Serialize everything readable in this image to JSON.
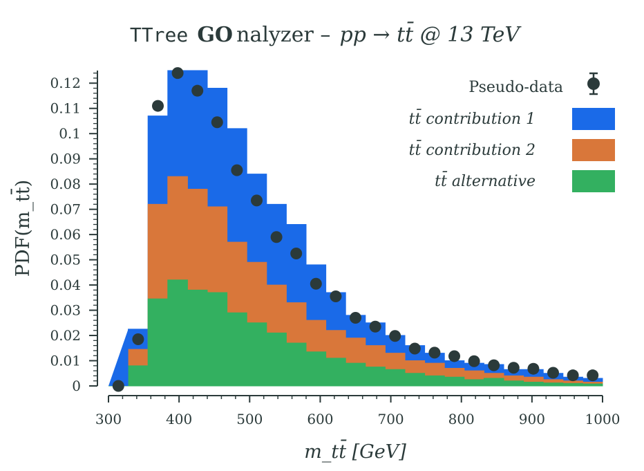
{
  "chart_data": {
    "type": "bar",
    "title": {
      "mono": "TTree",
      "bold": "GO",
      "rest": "nalyzer –",
      "process": "pp → tt̄ @ 13 TeV"
    },
    "xlabel": "m_tt̄ [GeV]",
    "ylabel": "PDF(m_tt̄)",
    "xlim": [
      300,
      1000
    ],
    "ylim": [
      0,
      0.125
    ],
    "xticks": [
      "300",
      "400",
      "500",
      "600",
      "700",
      "800",
      "900",
      "1000"
    ],
    "yticks": [
      "0",
      "0.01",
      "0.02",
      "0.03",
      "0.04",
      "0.05",
      "0.06",
      "0.07",
      "0.08",
      "0.09",
      "0.1",
      "0.11",
      "0.12"
    ],
    "bin_edges": [
      300,
      328,
      356,
      384,
      412,
      440,
      468,
      496,
      524,
      552,
      580,
      608,
      636,
      664,
      692,
      720,
      748,
      776,
      804,
      832,
      860,
      888,
      916,
      944,
      972,
      1000
    ],
    "series": [
      {
        "name": "tt̄ contribution 1",
        "color": "#1a6ae8",
        "values": [
          0.0,
          0.0225,
          0.107,
          0.125,
          0.125,
          0.118,
          0.102,
          0.084,
          0.072,
          0.064,
          0.048,
          0.037,
          0.028,
          0.025,
          0.02,
          0.016,
          0.013,
          0.01,
          0.009,
          0.0085,
          0.0065,
          0.0065,
          0.005,
          0.0035,
          0.003
        ]
      },
      {
        "name": "tt̄ contribution 2",
        "color": "#d9773a",
        "values": [
          0.0,
          0.0145,
          0.072,
          0.083,
          0.078,
          0.071,
          0.057,
          0.049,
          0.04,
          0.033,
          0.026,
          0.022,
          0.019,
          0.016,
          0.013,
          0.01,
          0.009,
          0.007,
          0.006,
          0.005,
          0.004,
          0.0035,
          0.0025,
          0.002,
          0.0015
        ]
      },
      {
        "name": "tt̄ alternative",
        "color": "#33b060",
        "values": [
          0.0,
          0.008,
          0.0345,
          0.042,
          0.038,
          0.037,
          0.029,
          0.025,
          0.021,
          0.017,
          0.0135,
          0.011,
          0.009,
          0.0075,
          0.0065,
          0.005,
          0.004,
          0.0035,
          0.0025,
          0.003,
          0.002,
          0.0015,
          0.0012,
          0.001,
          0.0008
        ]
      }
    ],
    "data_points": {
      "name": "Pseudo-data",
      "color": "#2b3a3a",
      "x": [
        314,
        342,
        370,
        398,
        426,
        454,
        482,
        510,
        538,
        566,
        594,
        622,
        650,
        678,
        706,
        734,
        762,
        790,
        818,
        846,
        874,
        902,
        930,
        958,
        986
      ],
      "y": [
        0.0,
        0.0185,
        0.111,
        0.124,
        0.117,
        0.1045,
        0.0855,
        0.0735,
        0.059,
        0.0525,
        0.0405,
        0.0355,
        0.027,
        0.0235,
        0.0198,
        0.0148,
        0.0132,
        0.0118,
        0.0098,
        0.0082,
        0.0072,
        0.0068,
        0.0052,
        0.0042,
        0.0042
      ]
    },
    "legend_position": "top-right",
    "grid": false
  }
}
